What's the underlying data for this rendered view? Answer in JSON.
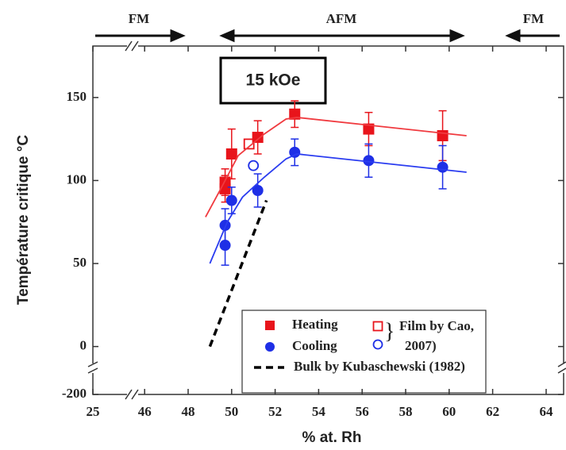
{
  "chart_data": {
    "type": "scatter",
    "top_labels": [
      "FM",
      "AFM",
      "FM"
    ],
    "box_label": "15 kOe",
    "xlabel": "% at. Rh",
    "ylabel": "Température critique °C",
    "xlim": [
      25,
      64
    ],
    "xbreak": [
      45.5,
      62.5
    ],
    "xticks": [
      25,
      46,
      48,
      50,
      52,
      54,
      56,
      58,
      60,
      62,
      64
    ],
    "ylim": [
      -200,
      181
    ],
    "ybreak": -15,
    "yticks": [
      -200,
      0,
      50,
      100,
      150
    ],
    "series": [
      {
        "name": "Heating",
        "color": "#e8141b",
        "marker": "square",
        "x": [
          49.7,
          49.7,
          50.0,
          51.2,
          52.9,
          56.3,
          59.7
        ],
        "values": [
          95,
          99,
          116,
          126,
          140,
          131,
          127
        ],
        "errors": [
          8,
          8,
          15,
          10,
          8,
          10,
          15
        ]
      },
      {
        "name": "Cooling",
        "color": "#1e2fe6",
        "marker": "circle",
        "x": [
          49.7,
          49.7,
          50.0,
          51.2,
          52.9,
          56.3,
          59.7
        ],
        "values": [
          73,
          61,
          88,
          94,
          117,
          112,
          108
        ],
        "errors": [
          10,
          12,
          8,
          10,
          8,
          10,
          13
        ]
      },
      {
        "color": "#e8141b",
        "marker": "open-square",
        "x": [
          50.8
        ],
        "values": [
          122
        ]
      },
      {
        "color": "#1e2fe6",
        "marker": "open-circle",
        "x": [
          51.0
        ],
        "values": [
          109
        ]
      },
      {
        "color": "#f03a3f",
        "marker": "line",
        "x": [
          48.8,
          49.5,
          50.3,
          51.5,
          52.5,
          53.0,
          60.8
        ],
        "values": [
          78,
          95,
          115,
          128,
          137,
          138,
          127
        ]
      },
      {
        "color": "#2a3cf0",
        "marker": "line",
        "x": [
          49.0,
          49.8,
          50.5,
          51.5,
          52.5,
          53.0,
          60.8
        ],
        "values": [
          50,
          75,
          90,
          102,
          113,
          116,
          105
        ]
      },
      {
        "name": "Bulk by Kubaschewski (1982)",
        "color": "#000000",
        "marker": "dashed",
        "x": [
          49.0,
          51.6
        ],
        "values": [
          0,
          88
        ]
      }
    ],
    "cao_legend": [
      "Film by Cao,",
      "2007)"
    ]
  }
}
